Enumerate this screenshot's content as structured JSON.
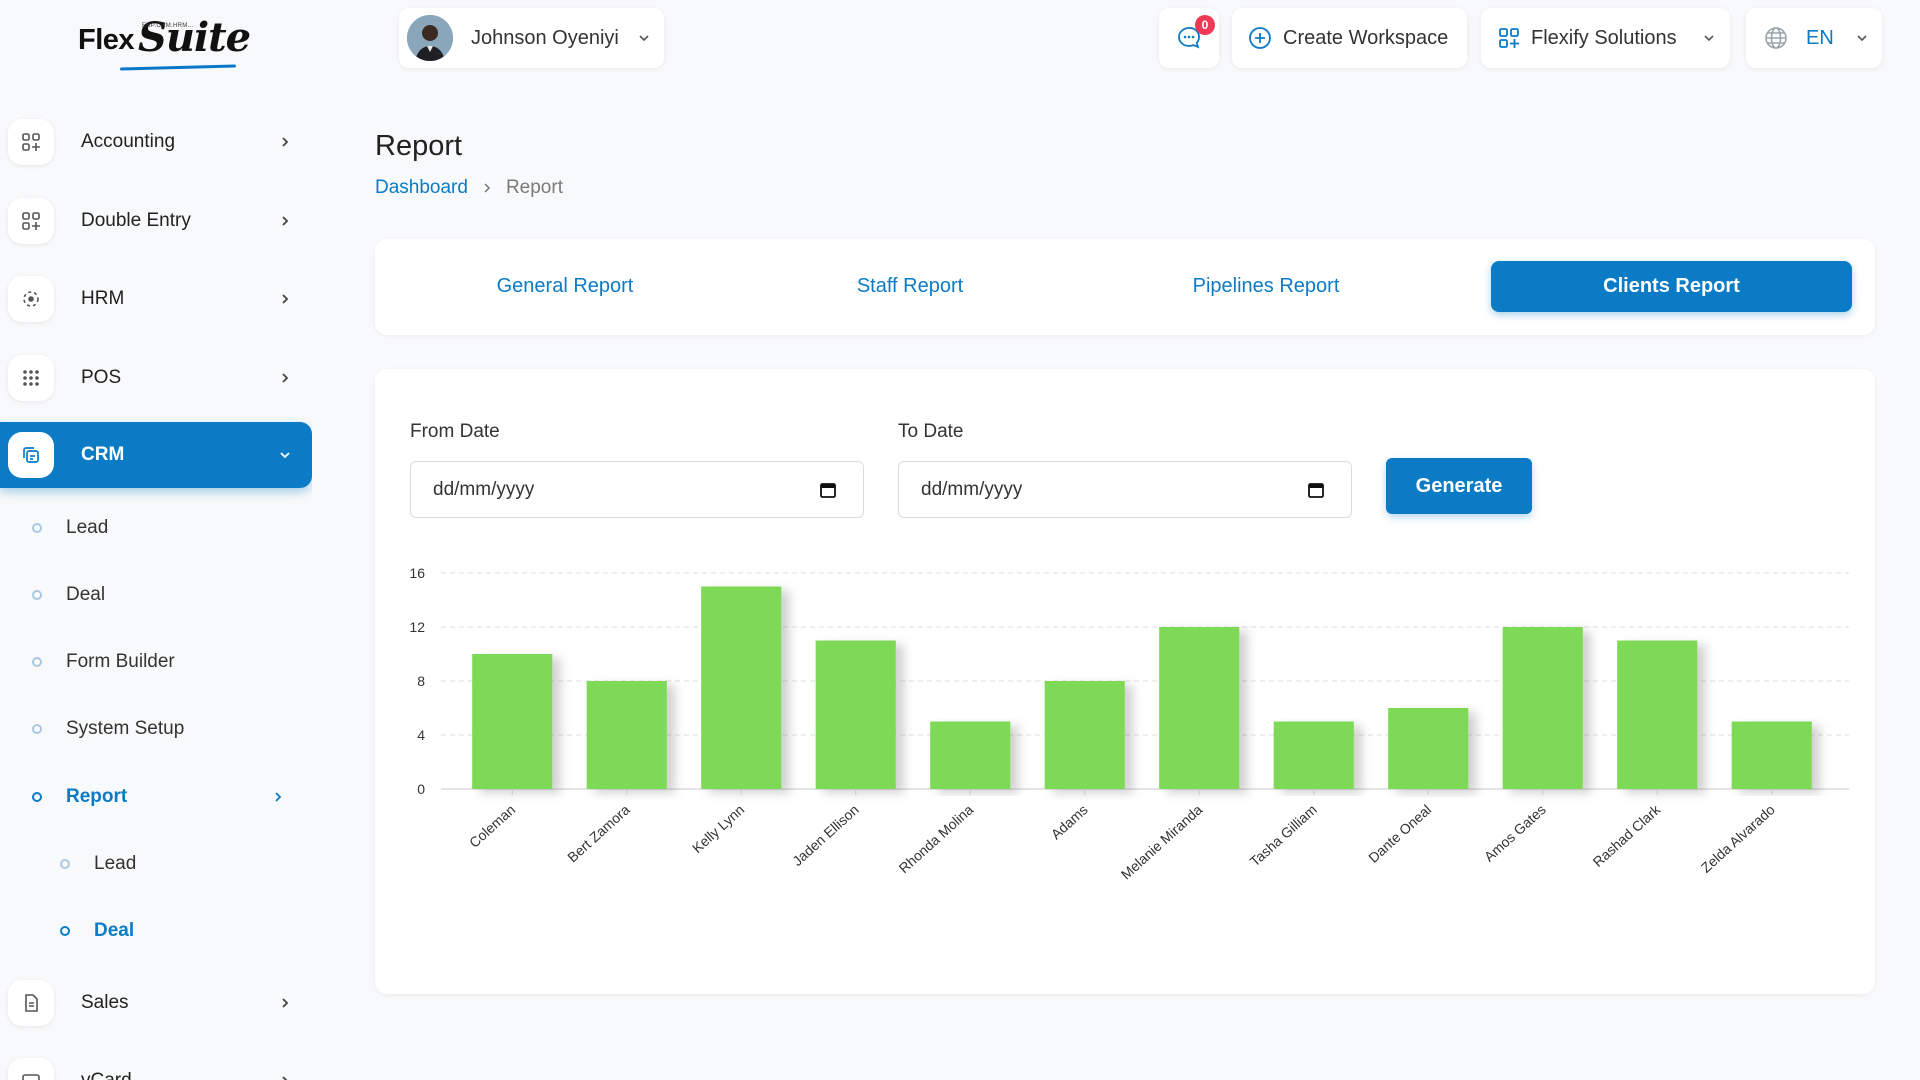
{
  "brand": {
    "name_part1": "Flex",
    "name_part2": "Suite",
    "tagline": "ERP.CRM.HRM..."
  },
  "sidebar": {
    "items": [
      {
        "label": "Accounting",
        "icon": "apps-add-icon"
      },
      {
        "label": "Double Entry",
        "icon": "apps-add-icon"
      },
      {
        "label": "HRM",
        "icon": "dots-circle-icon"
      },
      {
        "label": "POS",
        "icon": "grid-dots-icon"
      },
      {
        "label": "CRM",
        "icon": "copy-icon"
      },
      {
        "label": "Sales",
        "icon": "file-icon"
      },
      {
        "label": "vCard",
        "icon": "card-icon"
      }
    ],
    "crm_sub": [
      {
        "label": "Lead"
      },
      {
        "label": "Deal"
      },
      {
        "label": "Form Builder"
      },
      {
        "label": "System Setup"
      },
      {
        "label": "Report"
      }
    ],
    "report_sub": [
      {
        "label": "Lead"
      },
      {
        "label": "Deal"
      }
    ]
  },
  "header": {
    "user_name": "Johnson Oyeniyi",
    "messages_badge": "0",
    "create_workspace": "Create Workspace",
    "company": "Flexify Solutions",
    "language": "EN"
  },
  "page": {
    "title": "Report",
    "breadcrumb": {
      "home": "Dashboard",
      "current": "Report"
    }
  },
  "tabs": [
    {
      "label": "General Report"
    },
    {
      "label": "Staff Report"
    },
    {
      "label": "Pipelines Report"
    },
    {
      "label": "Clients Report",
      "active": true
    }
  ],
  "filters": {
    "from_label": "From Date",
    "from_value": "dd/mm/yyyy",
    "to_label": "To Date",
    "to_value": "dd/mm/yyyy",
    "generate": "Generate"
  },
  "colors": {
    "accent": "#0b7bc6",
    "bar": "#7ed957",
    "badge": "#ee3a55"
  },
  "chart_data": {
    "type": "bar",
    "categories": [
      "Coleman",
      "Bert Zamora",
      "Kelly Lynn",
      "Jaden Ellison",
      "Rhonda Molina",
      "Adams",
      "Melanie Miranda",
      "Tasha Gilliam",
      "Dante Oneal",
      "Amos Gates",
      "Rashad Clark",
      "Zelda Alvarado"
    ],
    "values": [
      10,
      8,
      15,
      11,
      5,
      8,
      12,
      5,
      6,
      12,
      11,
      5
    ],
    "ylim": [
      0,
      16
    ],
    "yticks": [
      0,
      4,
      8,
      12,
      16
    ],
    "grid": true
  }
}
